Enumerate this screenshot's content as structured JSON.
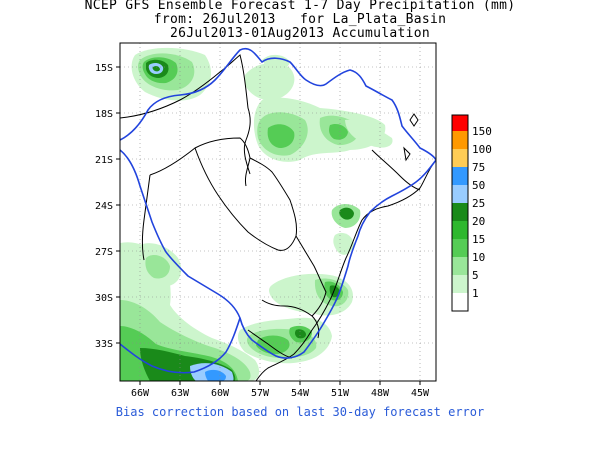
{
  "title": {
    "line1": "NCEP GFS Ensemble Forecast 1-7 Day Precipitation (mm)",
    "line2": "from: 26Jul2013   for La_Plata_Basin",
    "line3": "26Jul2013-01Aug2013 Accumulation"
  },
  "axes": {
    "y_labels": [
      "15S",
      "18S",
      "21S",
      "24S",
      "27S",
      "30S",
      "33S"
    ],
    "x_labels": [
      "66W",
      "63W",
      "60W",
      "57W",
      "54W",
      "51W",
      "48W",
      "45W"
    ]
  },
  "colorbar": {
    "labels": [
      "150",
      "100",
      "75",
      "50",
      "25",
      "20",
      "15",
      "10",
      "5",
      "1"
    ],
    "colors": [
      "#ff0000",
      "#ff9900",
      "#ffcc55",
      "#3399ff",
      "#99ccff",
      "#1a8a1a",
      "#2eb82e",
      "#55cc55",
      "#99e699",
      "#ccf5cc",
      "#ffffff"
    ]
  },
  "footer": "Bias correction based on last 30-day forecast error",
  "colors": {
    "basin_outline": "#2244dd",
    "country_border": "#000000",
    "grid": "#888888"
  }
}
